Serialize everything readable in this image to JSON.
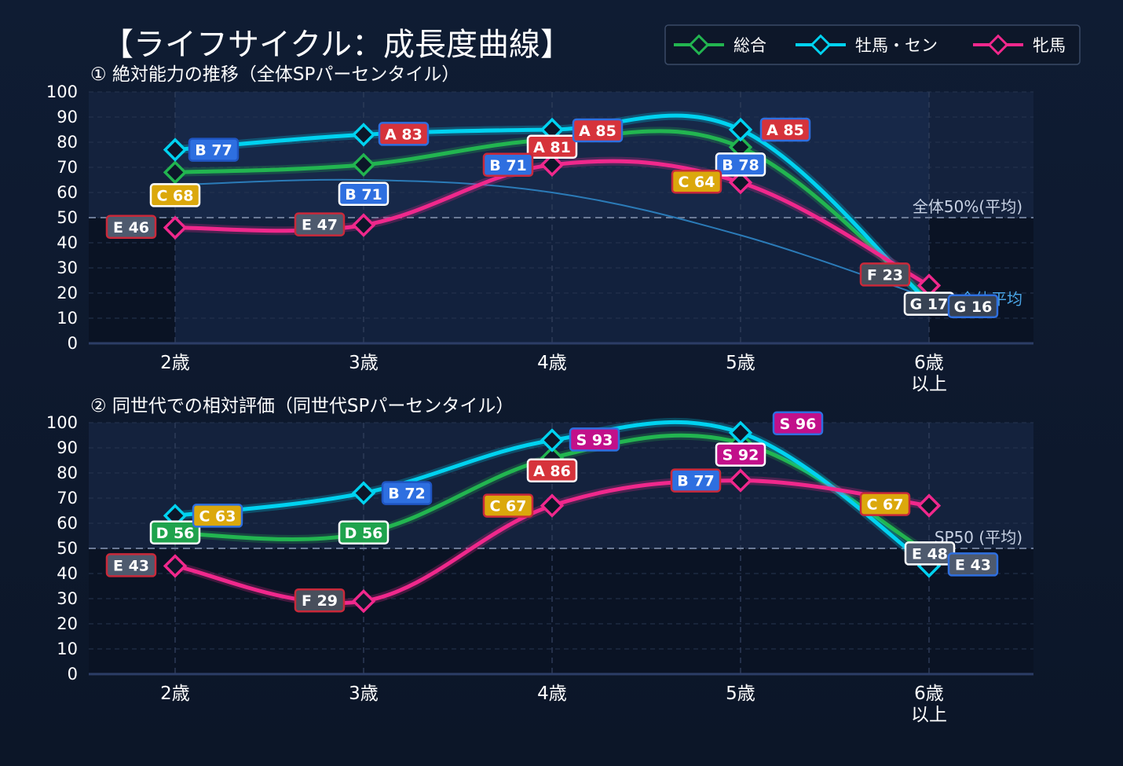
{
  "title": "【ライフサイクル：成長度曲線】",
  "legend": [
    {
      "name": "総合",
      "color": "#22b550"
    },
    {
      "name": "牡馬・セン",
      "color": "#00d2f0"
    },
    {
      "name": "牝馬",
      "color": "#f0288c"
    }
  ],
  "grade_colors": {
    "S": "#c2108a",
    "A": "#d6333b",
    "B": "#2e6fe0",
    "C": "#dba80c",
    "D": "#1fa34d",
    "E": "#4e5a6e",
    "F": "#484f5c",
    "G": "#374254"
  },
  "chart_data": [
    {
      "type": "line",
      "title": "① 絶対能力の推移（全体SPパーセンタイル）",
      "categories": [
        "2歳",
        "3歳",
        "4歳",
        "5歳",
        "6歳\n以上"
      ],
      "ylim": [
        0,
        100
      ],
      "yticks": [
        0,
        10,
        20,
        30,
        40,
        50,
        60,
        70,
        80,
        90,
        100
      ],
      "reference_line": {
        "value": 50,
        "label": "全体50%(平均)"
      },
      "average_curve": {
        "label": "全体平均",
        "values": [
          63,
          65,
          60,
          43,
          18
        ]
      },
      "series": [
        {
          "name": "総合",
          "values": [
            68,
            71,
            81,
            78,
            17
          ],
          "labels": [
            "C 68",
            "B 71",
            "A 81",
            "B 78",
            "G 17"
          ]
        },
        {
          "name": "牡馬・セン",
          "values": [
            77,
            83,
            85,
            85,
            16
          ],
          "labels": [
            "B 77",
            "A 83",
            "A 85",
            "A 85",
            "G 16"
          ]
        },
        {
          "name": "牝馬",
          "values": [
            46,
            47,
            71,
            64,
            23
          ],
          "labels": [
            "E 46",
            "E 47",
            "B 71",
            "C 64",
            "F 23"
          ]
        }
      ]
    },
    {
      "type": "line",
      "title": "② 同世代での相対評価（同世代SPパーセンタイル）",
      "categories": [
        "2歳",
        "3歳",
        "4歳",
        "5歳",
        "6歳\n以上"
      ],
      "ylim": [
        0,
        100
      ],
      "yticks": [
        0,
        10,
        20,
        30,
        40,
        50,
        60,
        70,
        80,
        90,
        100
      ],
      "reference_line": {
        "value": 50,
        "label": "SP50 (平均)"
      },
      "series": [
        {
          "name": "総合",
          "values": [
            56,
            56,
            86,
            92,
            48
          ],
          "labels": [
            "D 56",
            "D 56",
            "A 86",
            "S 92",
            "E 48"
          ]
        },
        {
          "name": "牡馬・セン",
          "values": [
            63,
            72,
            93,
            96,
            43
          ],
          "labels": [
            "C 63",
            "B 72",
            "S 93",
            "S 96",
            "E 43"
          ]
        },
        {
          "name": "牝馬",
          "values": [
            43,
            29,
            67,
            77,
            67
          ],
          "labels": [
            "E 43",
            "F 29",
            "C 67",
            "B 77",
            "C 67"
          ]
        }
      ]
    }
  ]
}
